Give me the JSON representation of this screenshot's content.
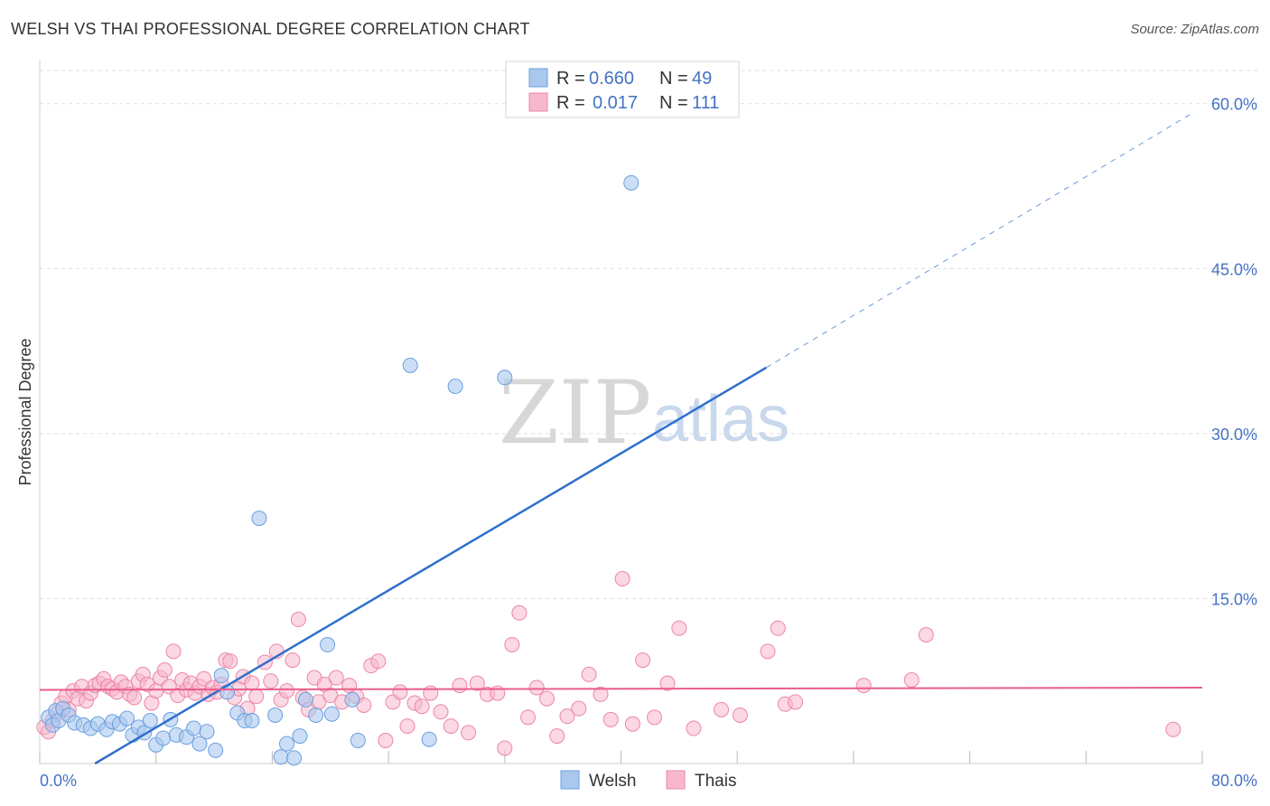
{
  "title": "WELSH VS THAI PROFESSIONAL DEGREE CORRELATION CHART",
  "source": "Source: ZipAtlas.com",
  "watermark": {
    "zip": "ZIP",
    "atlas": "atlas"
  },
  "legend": {
    "rows": [
      {
        "r_label": "R =",
        "r_value": "0.660",
        "n_label": "N =",
        "n_value": "49"
      },
      {
        "r_label": "R =",
        "r_value": "0.017",
        "n_label": "N =",
        "n_value": "111"
      }
    ]
  },
  "bottom_legend": [
    "Welsh",
    "Thais"
  ],
  "colors": {
    "welsh_fill": "#aac8ee",
    "welsh_stroke": "#6a9fe0",
    "welsh_line": "#2e6fce",
    "thai_fill": "#f7b8cc",
    "thai_stroke": "#ec86a6",
    "thai_line": "#e95d8a",
    "grid": "#dddddd",
    "axis_text": "#4472c4"
  },
  "chart_data": {
    "type": "scatter",
    "title": "WELSH VS THAI PROFESSIONAL DEGREE CORRELATION CHART",
    "xlabel": "",
    "ylabel": "Professional Degree",
    "xlim": [
      0,
      80
    ],
    "ylim": [
      0,
      64
    ],
    "x_tick_labels": [
      "0.0%",
      "80.0%"
    ],
    "y_ticks": [
      15,
      30,
      45,
      60
    ],
    "y_tick_labels": [
      "15.0%",
      "30.0%",
      "45.0%",
      "60.0%"
    ],
    "grid": true,
    "legend_position": "top-center",
    "series": [
      {
        "name": "Welsh",
        "r": 0.66,
        "n": 49,
        "trend": {
          "x0": 3.8,
          "y0": 0,
          "x1": 50.0,
          "y1": 36.0,
          "dashed_to_x": 79.4,
          "dashed_to_y": 59.2
        },
        "points": [
          [
            0.6,
            4.2
          ],
          [
            0.9,
            3.5
          ],
          [
            1.1,
            4.8
          ],
          [
            1.3,
            3.9
          ],
          [
            1.6,
            5.0
          ],
          [
            2.0,
            4.4
          ],
          [
            2.4,
            3.7
          ],
          [
            3.0,
            3.5
          ],
          [
            3.5,
            3.2
          ],
          [
            4.0,
            3.6
          ],
          [
            4.6,
            3.1
          ],
          [
            5.0,
            3.8
          ],
          [
            5.5,
            3.6
          ],
          [
            6.0,
            4.1
          ],
          [
            6.4,
            2.6
          ],
          [
            6.8,
            3.3
          ],
          [
            7.2,
            2.8
          ],
          [
            7.6,
            3.9
          ],
          [
            8.0,
            1.7
          ],
          [
            8.5,
            2.3
          ],
          [
            9.0,
            4.0
          ],
          [
            9.4,
            2.6
          ],
          [
            10.1,
            2.4
          ],
          [
            10.6,
            3.2
          ],
          [
            11.0,
            1.8
          ],
          [
            11.5,
            2.9
          ],
          [
            12.1,
            1.2
          ],
          [
            12.5,
            8.0
          ],
          [
            12.9,
            6.5
          ],
          [
            13.6,
            4.6
          ],
          [
            14.1,
            3.9
          ],
          [
            14.6,
            3.9
          ],
          [
            15.1,
            22.3
          ],
          [
            16.2,
            4.4
          ],
          [
            16.6,
            0.6
          ],
          [
            17.0,
            1.8
          ],
          [
            17.5,
            0.5
          ],
          [
            17.9,
            2.5
          ],
          [
            18.3,
            5.8
          ],
          [
            19.0,
            4.4
          ],
          [
            19.8,
            10.8
          ],
          [
            20.1,
            4.5
          ],
          [
            21.5,
            5.8
          ],
          [
            21.9,
            2.1
          ],
          [
            25.5,
            36.2
          ],
          [
            26.8,
            2.2
          ],
          [
            28.6,
            34.3
          ],
          [
            32.0,
            35.1
          ],
          [
            40.7,
            52.8
          ]
        ]
      },
      {
        "name": "Thais",
        "r": 0.017,
        "n": 111,
        "trend": {
          "x0": 0,
          "y0": 6.7,
          "x1": 80,
          "y1": 6.9
        },
        "points": [
          [
            0.3,
            3.3
          ],
          [
            0.6,
            2.9
          ],
          [
            0.9,
            3.9
          ],
          [
            1.2,
            4.6
          ],
          [
            1.5,
            5.5
          ],
          [
            1.8,
            6.1
          ],
          [
            2.0,
            4.9
          ],
          [
            2.3,
            6.6
          ],
          [
            2.6,
            5.9
          ],
          [
            2.9,
            7.0
          ],
          [
            3.2,
            5.7
          ],
          [
            3.5,
            6.4
          ],
          [
            3.8,
            7.1
          ],
          [
            4.1,
            7.3
          ],
          [
            4.4,
            7.7
          ],
          [
            4.7,
            7.0
          ],
          [
            5.0,
            6.8
          ],
          [
            5.3,
            6.5
          ],
          [
            5.6,
            7.4
          ],
          [
            5.9,
            7.0
          ],
          [
            6.2,
            6.3
          ],
          [
            6.5,
            6.0
          ],
          [
            6.8,
            7.5
          ],
          [
            7.1,
            8.1
          ],
          [
            7.4,
            7.2
          ],
          [
            7.7,
            5.5
          ],
          [
            8.0,
            6.6
          ],
          [
            8.3,
            7.8
          ],
          [
            8.6,
            8.5
          ],
          [
            8.9,
            7.0
          ],
          [
            9.2,
            10.2
          ],
          [
            9.5,
            6.2
          ],
          [
            9.8,
            7.6
          ],
          [
            10.1,
            6.7
          ],
          [
            10.4,
            7.3
          ],
          [
            10.7,
            6.4
          ],
          [
            11.0,
            7.0
          ],
          [
            11.3,
            7.7
          ],
          [
            11.6,
            6.3
          ],
          [
            11.9,
            6.9
          ],
          [
            12.2,
            6.5
          ],
          [
            12.5,
            7.2
          ],
          [
            12.8,
            9.4
          ],
          [
            13.1,
            9.3
          ],
          [
            13.4,
            6.0
          ],
          [
            13.7,
            6.8
          ],
          [
            14.0,
            7.9
          ],
          [
            14.3,
            5.0
          ],
          [
            14.6,
            7.3
          ],
          [
            14.9,
            6.1
          ],
          [
            15.5,
            9.2
          ],
          [
            15.9,
            7.5
          ],
          [
            16.3,
            10.2
          ],
          [
            16.6,
            5.8
          ],
          [
            17.0,
            6.6
          ],
          [
            17.4,
            9.4
          ],
          [
            17.8,
            13.1
          ],
          [
            18.1,
            6.0
          ],
          [
            18.5,
            4.9
          ],
          [
            18.9,
            7.8
          ],
          [
            19.2,
            5.6
          ],
          [
            19.6,
            7.2
          ],
          [
            20.0,
            6.2
          ],
          [
            20.4,
            7.8
          ],
          [
            20.8,
            5.6
          ],
          [
            21.3,
            7.1
          ],
          [
            21.8,
            6.1
          ],
          [
            22.3,
            5.3
          ],
          [
            22.8,
            8.9
          ],
          [
            23.3,
            9.3
          ],
          [
            23.8,
            2.1
          ],
          [
            24.3,
            5.6
          ],
          [
            24.8,
            6.5
          ],
          [
            25.3,
            3.4
          ],
          [
            25.8,
            5.5
          ],
          [
            26.3,
            5.2
          ],
          [
            26.9,
            6.4
          ],
          [
            27.6,
            4.7
          ],
          [
            28.3,
            3.4
          ],
          [
            28.9,
            7.1
          ],
          [
            29.5,
            2.8
          ],
          [
            30.1,
            7.3
          ],
          [
            30.8,
            6.3
          ],
          [
            31.5,
            6.4
          ],
          [
            32.0,
            1.4
          ],
          [
            32.5,
            10.8
          ],
          [
            33.0,
            13.7
          ],
          [
            33.6,
            4.2
          ],
          [
            34.2,
            6.9
          ],
          [
            34.9,
            5.9
          ],
          [
            35.6,
            2.5
          ],
          [
            36.3,
            4.3
          ],
          [
            37.1,
            5.0
          ],
          [
            37.8,
            8.1
          ],
          [
            38.6,
            6.3
          ],
          [
            39.3,
            4.0
          ],
          [
            40.1,
            16.8
          ],
          [
            40.8,
            3.6
          ],
          [
            41.5,
            9.4
          ],
          [
            42.3,
            4.2
          ],
          [
            43.2,
            7.3
          ],
          [
            44.0,
            12.3
          ],
          [
            45.0,
            3.2
          ],
          [
            46.9,
            4.9
          ],
          [
            48.2,
            4.4
          ],
          [
            50.1,
            10.2
          ],
          [
            50.8,
            12.3
          ],
          [
            51.3,
            5.4
          ],
          [
            52.0,
            5.6
          ],
          [
            56.7,
            7.1
          ],
          [
            60.0,
            7.6
          ],
          [
            61.0,
            11.7
          ],
          [
            78.0,
            3.1
          ]
        ]
      }
    ]
  }
}
